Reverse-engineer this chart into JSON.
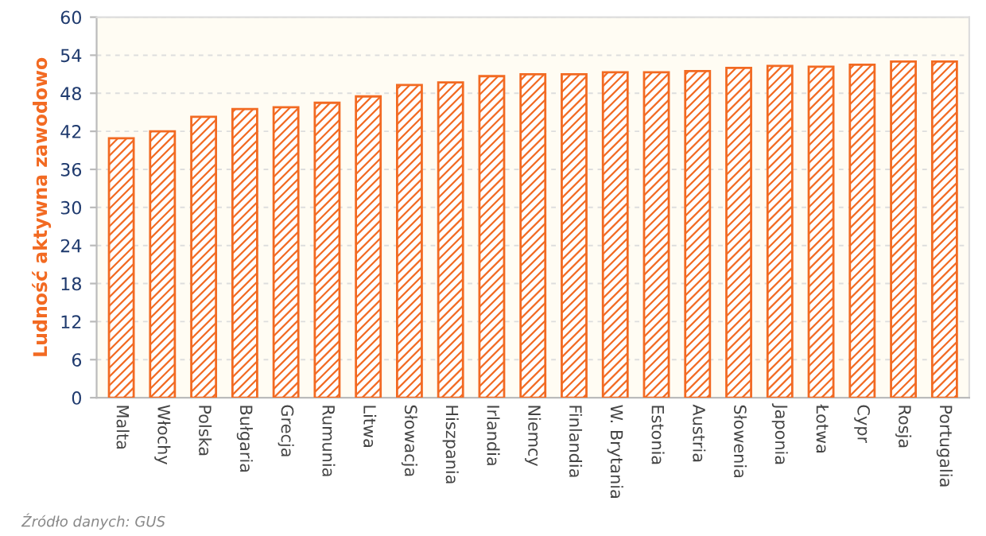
{
  "chart_data": {
    "type": "bar",
    "ylabel": "Ludność aktywna zawodowo",
    "categories": [
      "Malta",
      "Włochy",
      "Polska",
      "Bułgaria",
      "Grecja",
      "Rumunia",
      "Litwa",
      "Słowacja",
      "Hiszpania",
      "Irlandia",
      "Niemcy",
      "Finlandia",
      "W. Brytania",
      "Estonia",
      "Austria",
      "Słowenia",
      "Japonia",
      "Łotwa",
      "Cypr",
      "Rosja",
      "Portugalia"
    ],
    "values": [
      40.9,
      42.0,
      44.3,
      45.5,
      45.8,
      46.5,
      47.5,
      49.3,
      49.7,
      50.7,
      51.0,
      51.0,
      51.3,
      51.3,
      51.5,
      52.0,
      52.3,
      52.2,
      52.5,
      53.0,
      53.0
    ],
    "color": "#f26a22",
    "ylim": [
      0,
      60
    ],
    "yticks": [
      0,
      6,
      12,
      18,
      24,
      30,
      36,
      42,
      48,
      54,
      60
    ],
    "grid": "y",
    "annotations": [
      "Źródło danych: GUS"
    ]
  }
}
